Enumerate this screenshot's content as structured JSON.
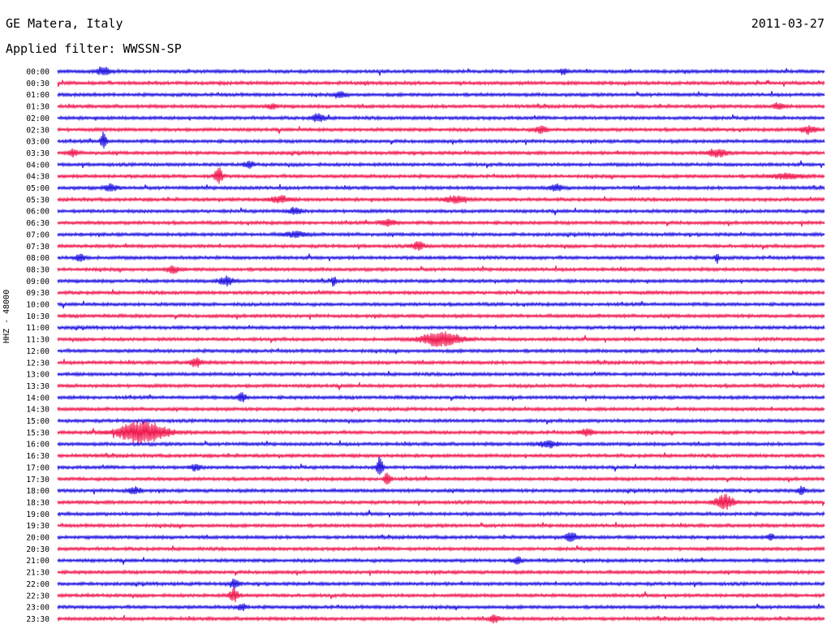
{
  "header": {
    "station": "GE Matera, Italy",
    "date": "2011-03-27",
    "filter": "Applied filter: WWSSN-SP"
  },
  "side_label": "HHZ - 48000",
  "colors": {
    "blue": "#1c0fe0",
    "red": "#f0154d"
  },
  "chart_data": {
    "type": "line",
    "title": "GE Matera, Italy",
    "channel": "HHZ - 48000",
    "y_tick_labels": [
      "00:00",
      "00:30",
      "01:00",
      "01:30",
      "02:00",
      "02:30",
      "03:00",
      "03:30",
      "04:00",
      "04:30",
      "05:00",
      "05:30",
      "06:00",
      "06:30",
      "07:00",
      "07:30",
      "08:00",
      "08:30",
      "09:00",
      "09:30",
      "10:00",
      "10:30",
      "11:00",
      "11:30",
      "12:00",
      "12:30",
      "13:00",
      "13:30",
      "14:00",
      "14:30",
      "15:00",
      "15:30",
      "16:00",
      "16:30",
      "17:00",
      "17:30",
      "18:00",
      "18:30",
      "19:00",
      "19:30",
      "20:00",
      "20:30",
      "21:00",
      "21:30",
      "22:00",
      "22:30",
      "23:00",
      "23:30"
    ],
    "row_colors_cycle": [
      "blue",
      "red"
    ],
    "events": [
      {
        "row": "00:00",
        "pos": 0.06,
        "amp": 5,
        "width": 0.008
      },
      {
        "row": "00:00",
        "pos": 0.66,
        "amp": 4,
        "width": 0.005
      },
      {
        "row": "01:00",
        "pos": 0.37,
        "amp": 4,
        "width": 0.006
      },
      {
        "row": "01:30",
        "pos": 0.28,
        "amp": 3,
        "width": 0.006
      },
      {
        "row": "01:30",
        "pos": 0.94,
        "amp": 4,
        "width": 0.006
      },
      {
        "row": "02:00",
        "pos": 0.34,
        "amp": 5,
        "width": 0.008
      },
      {
        "row": "02:30",
        "pos": 0.63,
        "amp": 4,
        "width": 0.008
      },
      {
        "row": "02:30",
        "pos": 0.98,
        "amp": 5,
        "width": 0.01
      },
      {
        "row": "03:00",
        "pos": 0.06,
        "amp": 11,
        "width": 0.004
      },
      {
        "row": "03:30",
        "pos": 0.86,
        "amp": 5,
        "width": 0.012
      },
      {
        "row": "03:30",
        "pos": 0.02,
        "amp": 4,
        "width": 0.006
      },
      {
        "row": "04:00",
        "pos": 0.25,
        "amp": 4,
        "width": 0.006
      },
      {
        "row": "04:30",
        "pos": 0.21,
        "amp": 10,
        "width": 0.005
      },
      {
        "row": "04:30",
        "pos": 0.95,
        "amp": 3,
        "width": 0.02
      },
      {
        "row": "05:00",
        "pos": 0.07,
        "amp": 4,
        "width": 0.008
      },
      {
        "row": "05:00",
        "pos": 0.65,
        "amp": 4,
        "width": 0.008
      },
      {
        "row": "05:30",
        "pos": 0.29,
        "amp": 4,
        "width": 0.012
      },
      {
        "row": "05:30",
        "pos": 0.52,
        "amp": 4,
        "width": 0.015
      },
      {
        "row": "06:00",
        "pos": 0.31,
        "amp": 4,
        "width": 0.008
      },
      {
        "row": "06:30",
        "pos": 0.43,
        "amp": 4,
        "width": 0.01
      },
      {
        "row": "07:00",
        "pos": 0.31,
        "amp": 3,
        "width": 0.015
      },
      {
        "row": "07:30",
        "pos": 0.47,
        "amp": 5,
        "width": 0.008
      },
      {
        "row": "08:00",
        "pos": 0.03,
        "amp": 5,
        "width": 0.006
      },
      {
        "row": "08:00",
        "pos": 0.86,
        "amp": 6,
        "width": 0.003
      },
      {
        "row": "08:30",
        "pos": 0.15,
        "amp": 4,
        "width": 0.008
      },
      {
        "row": "09:00",
        "pos": 0.22,
        "amp": 5,
        "width": 0.01
      },
      {
        "row": "09:00",
        "pos": 0.36,
        "amp": 6,
        "width": 0.003
      },
      {
        "row": "11:30",
        "pos": 0.5,
        "amp": 9,
        "width": 0.025
      },
      {
        "row": "12:30",
        "pos": 0.18,
        "amp": 5,
        "width": 0.008
      },
      {
        "row": "14:00",
        "pos": 0.24,
        "amp": 5,
        "width": 0.006
      },
      {
        "row": "15:30",
        "pos": 0.11,
        "amp": 14,
        "width": 0.03
      },
      {
        "row": "15:30",
        "pos": 0.69,
        "amp": 4,
        "width": 0.008
      },
      {
        "row": "16:00",
        "pos": 0.64,
        "amp": 4,
        "width": 0.012
      },
      {
        "row": "17:00",
        "pos": 0.42,
        "amp": 12,
        "width": 0.004
      },
      {
        "row": "17:00",
        "pos": 0.18,
        "amp": 4,
        "width": 0.006
      },
      {
        "row": "17:30",
        "pos": 0.43,
        "amp": 10,
        "width": 0.004
      },
      {
        "row": "18:00",
        "pos": 0.1,
        "amp": 4,
        "width": 0.008
      },
      {
        "row": "18:00",
        "pos": 0.97,
        "amp": 5,
        "width": 0.005
      },
      {
        "row": "18:30",
        "pos": 0.87,
        "amp": 9,
        "width": 0.012
      },
      {
        "row": "20:00",
        "pos": 0.67,
        "amp": 5,
        "width": 0.008
      },
      {
        "row": "20:00",
        "pos": 0.93,
        "amp": 4,
        "width": 0.004
      },
      {
        "row": "21:00",
        "pos": 0.6,
        "amp": 4,
        "width": 0.006
      },
      {
        "row": "22:00",
        "pos": 0.23,
        "amp": 5,
        "width": 0.006
      },
      {
        "row": "22:30",
        "pos": 0.23,
        "amp": 8,
        "width": 0.006
      },
      {
        "row": "23:00",
        "pos": 0.24,
        "amp": 4,
        "width": 0.006
      },
      {
        "row": "23:30",
        "pos": 0.57,
        "amp": 5,
        "width": 0.006
      }
    ]
  }
}
